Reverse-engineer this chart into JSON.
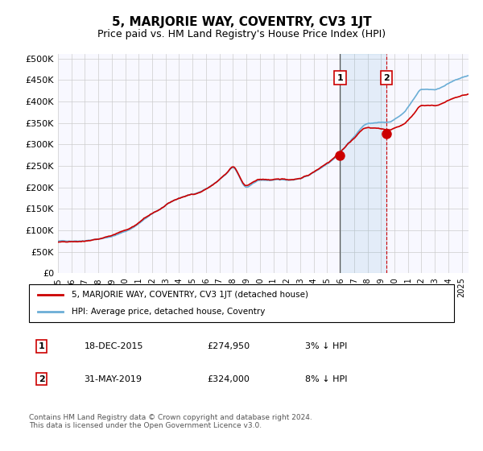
{
  "title": "5, MARJORIE WAY, COVENTRY, CV3 1JT",
  "subtitle": "Price paid vs. HM Land Registry's House Price Index (HPI)",
  "ylabel_ticks": [
    "£0",
    "£50K",
    "£100K",
    "£150K",
    "£200K",
    "£250K",
    "£300K",
    "£350K",
    "£400K",
    "£450K",
    "£500K"
  ],
  "ytick_vals": [
    0,
    50000,
    100000,
    150000,
    200000,
    250000,
    300000,
    350000,
    400000,
    450000,
    500000
  ],
  "ylim": [
    0,
    510000
  ],
  "hpi_color": "#6baed6",
  "price_color": "#cc0000",
  "background_color": "#ffffff",
  "grid_color": "#cccccc",
  "event1_date_num": 2015.96,
  "event1_price": 274950,
  "event1_label": "1",
  "event2_date_num": 2019.41,
  "event2_price": 324000,
  "event2_label": "2",
  "legend_line1": "5, MARJORIE WAY, COVENTRY, CV3 1JT (detached house)",
  "legend_line2": "HPI: Average price, detached house, Coventry",
  "table_row1": [
    "1",
    "18-DEC-2015",
    "£274,950",
    "3% ↓ HPI"
  ],
  "table_row2": [
    "2",
    "31-MAY-2019",
    "£324,000",
    "8% ↓ HPI"
  ],
  "footnote": "Contains HM Land Registry data © Crown copyright and database right 2024.\nThis data is licensed under the Open Government Licence v3.0.",
  "xlim_start": 1995.0,
  "xlim_end": 2025.5,
  "xticks": [
    1995,
    1996,
    1997,
    1998,
    1999,
    2000,
    2001,
    2002,
    2003,
    2004,
    2005,
    2006,
    2007,
    2008,
    2009,
    2010,
    2011,
    2012,
    2013,
    2014,
    2015,
    2016,
    2017,
    2018,
    2019,
    2020,
    2021,
    2022,
    2023,
    2024,
    2025
  ]
}
